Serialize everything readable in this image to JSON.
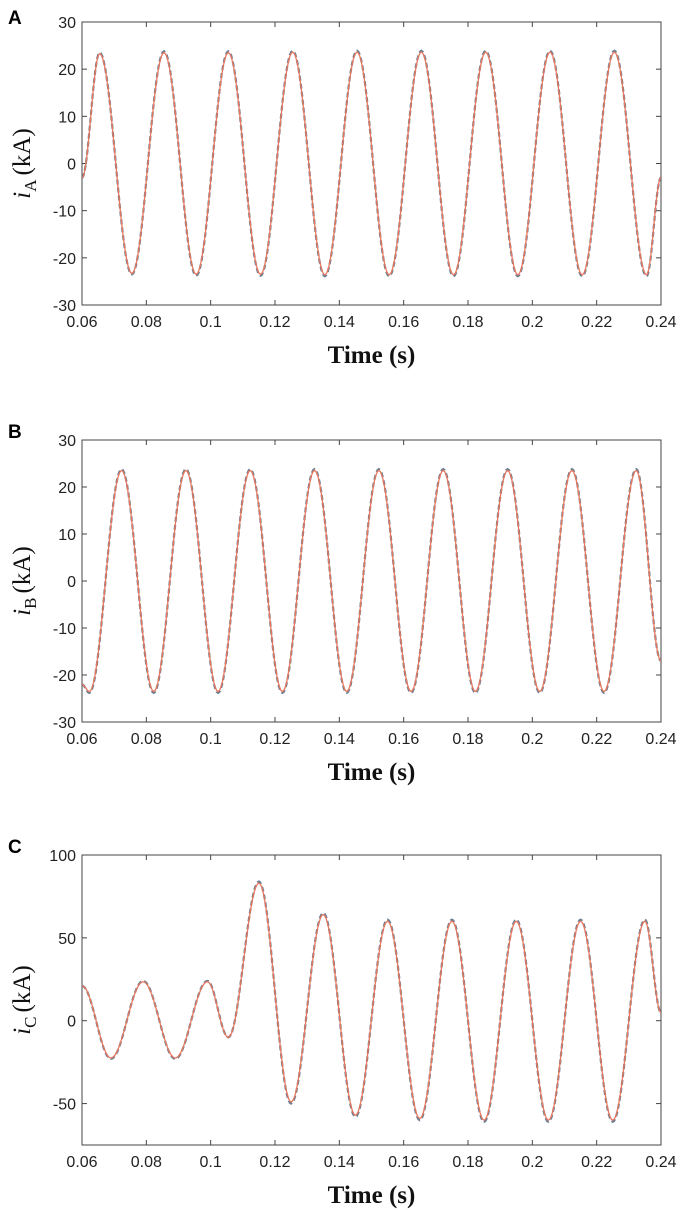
{
  "chart_data": [
    {
      "panel_label": "A",
      "type": "line",
      "ylabel_var": "i",
      "ylabel_sub": "A",
      "ylabel_unit": "(kA)",
      "xlabel": "Time (s)",
      "xlim": [
        0.06,
        0.24
      ],
      "ylim": [
        -30,
        30
      ],
      "xticks": [
        "0.06",
        "0.08",
        "0.1",
        "0.12",
        "0.14",
        "0.16",
        "0.18",
        "0.2",
        "0.22",
        "0.24"
      ],
      "yticks": [
        "-30",
        "-20",
        "-10",
        "0",
        "10",
        "20",
        "30"
      ],
      "series": [
        {
          "style": "dashed",
          "color": "#6d7f92",
          "x": [
            0.06,
            0.0655,
            0.0755,
            0.0855,
            0.0955,
            0.1055,
            0.1155,
            0.1255,
            0.1355,
            0.1455,
            0.1555,
            0.1655,
            0.1755,
            0.1855,
            0.1955,
            0.2055,
            0.2155,
            0.2255,
            0.2355,
            0.24
          ],
          "y": [
            -3,
            23.5,
            -23.5,
            23.8,
            -23.8,
            23.8,
            -23.8,
            23.9,
            -23.9,
            23.9,
            -23.9,
            23.9,
            -23.9,
            23.9,
            -23.9,
            23.9,
            -23.9,
            23.9,
            -23.9,
            -3
          ]
        },
        {
          "style": "solid",
          "color": "#e8775e",
          "x": [
            0.06,
            0.0655,
            0.0755,
            0.0855,
            0.0955,
            0.1055,
            0.1155,
            0.1255,
            0.1355,
            0.1455,
            0.1555,
            0.1655,
            0.1755,
            0.1855,
            0.1955,
            0.2055,
            0.2155,
            0.2255,
            0.2355,
            0.24
          ],
          "y": [
            -3,
            23.3,
            -23.3,
            23.5,
            -23.5,
            23.5,
            -23.5,
            23.6,
            -23.6,
            23.6,
            -23.6,
            23.6,
            -23.6,
            23.6,
            -23.6,
            23.6,
            -23.6,
            23.6,
            -23.6,
            -3
          ]
        }
      ]
    },
    {
      "panel_label": "B",
      "type": "line",
      "ylabel_var": "i",
      "ylabel_sub": "B",
      "ylabel_unit": "(kA)",
      "xlabel": "Time (s)",
      "xlim": [
        0.06,
        0.24
      ],
      "ylim": [
        -30,
        30
      ],
      "xticks": [
        "0.06",
        "0.08",
        "0.1",
        "0.12",
        "0.14",
        "0.16",
        "0.18",
        "0.2",
        "0.22",
        "0.24"
      ],
      "yticks": [
        "-30",
        "-20",
        "-10",
        "0",
        "10",
        "20",
        "30"
      ],
      "series": [
        {
          "style": "dashed",
          "color": "#6d7f92",
          "x": [
            0.06,
            0.0623,
            0.0723,
            0.0823,
            0.0923,
            0.1023,
            0.1123,
            0.1223,
            0.1323,
            0.1423,
            0.1523,
            0.1623,
            0.1723,
            0.1823,
            0.1923,
            0.2023,
            0.2123,
            0.2223,
            0.2323,
            0.24
          ],
          "y": [
            -22,
            -23.8,
            23.8,
            -23.8,
            23.8,
            -23.8,
            23.8,
            -23.8,
            23.8,
            -23.8,
            23.8,
            -23.8,
            23.8,
            -23.8,
            23.8,
            -23.8,
            23.8,
            -23.8,
            23.8,
            -17
          ]
        },
        {
          "style": "solid",
          "color": "#e8775e",
          "x": [
            0.06,
            0.0623,
            0.0723,
            0.0823,
            0.0923,
            0.1023,
            0.1123,
            0.1223,
            0.1323,
            0.1423,
            0.1523,
            0.1623,
            0.1723,
            0.1823,
            0.1923,
            0.2023,
            0.2123,
            0.2223,
            0.2323,
            0.24
          ],
          "y": [
            -22,
            -23.5,
            23.5,
            -23.5,
            23.5,
            -23.5,
            23.5,
            -23.5,
            23.5,
            -23.5,
            23.5,
            -23.5,
            23.5,
            -23.5,
            23.5,
            -23.5,
            23.5,
            -23.5,
            23.5,
            -17
          ]
        }
      ]
    },
    {
      "panel_label": "C",
      "type": "line",
      "ylabel_var": "i",
      "ylabel_sub": "C",
      "ylabel_unit": "(kA)",
      "xlabel": "Time (s)",
      "xlim": [
        0.06,
        0.24
      ],
      "ylim": [
        -75,
        100
      ],
      "xticks": [
        "0.06",
        "0.08",
        "0.1",
        "0.12",
        "0.14",
        "0.16",
        "0.18",
        "0.2",
        "0.22",
        "0.24"
      ],
      "yticks": [
        "-50",
        "0",
        "50",
        "100"
      ],
      "series": [
        {
          "style": "dashed",
          "color": "#6d7f92",
          "x": [
            0.06,
            0.069,
            0.079,
            0.089,
            0.099,
            0.1055,
            0.115,
            0.125,
            0.135,
            0.145,
            0.155,
            0.165,
            0.175,
            0.185,
            0.195,
            0.205,
            0.215,
            0.225,
            0.235,
            0.24
          ],
          "y": [
            21,
            -23,
            24,
            -23,
            24,
            -10,
            84,
            -50,
            65,
            -58,
            61,
            -60,
            61,
            -61,
            61,
            -61,
            61,
            -61,
            61,
            5
          ]
        },
        {
          "style": "solid",
          "color": "#e8775e",
          "x": [
            0.06,
            0.069,
            0.079,
            0.089,
            0.099,
            0.1055,
            0.115,
            0.125,
            0.135,
            0.145,
            0.155,
            0.165,
            0.175,
            0.185,
            0.195,
            0.205,
            0.215,
            0.225,
            0.235,
            0.24
          ],
          "y": [
            21,
            -22.5,
            23.5,
            -22.5,
            23.5,
            -10,
            83,
            -49,
            64,
            -57,
            60,
            -59,
            60,
            -60,
            60,
            -60,
            60,
            -60,
            60,
            5
          ]
        }
      ]
    }
  ]
}
